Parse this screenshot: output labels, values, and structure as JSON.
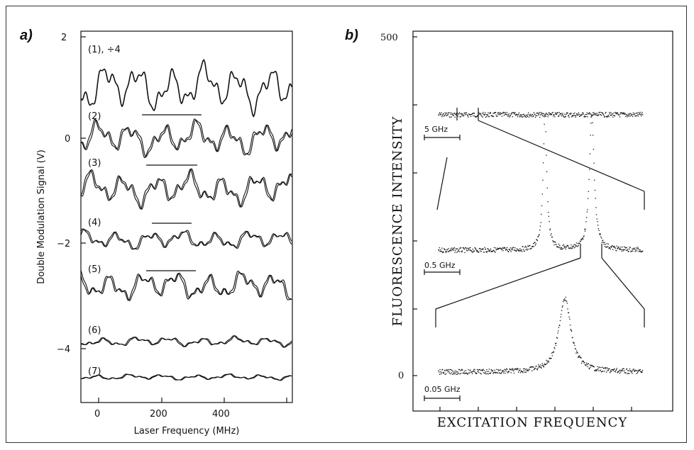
{
  "panel_a": {
    "letter": "a)",
    "ylabel": "Double Modulation Signal (V)",
    "xlabel": "Laser Frequency (MHz)",
    "yticks": [
      "2",
      "0",
      "−2",
      "−4"
    ],
    "xticks": [
      "0",
      "200",
      "400"
    ],
    "trace_labels": [
      "(1), ÷4",
      "(2)",
      "(3)",
      "(4)",
      "(5)",
      "(6)",
      "(7)"
    ]
  },
  "panel_b": {
    "letter": "b)",
    "ylabel": "FLUORESCENCE INTENSITY",
    "xlabel": "EXCITATION FREQUENCY",
    "yticks": [
      "500",
      "0"
    ],
    "scale_labels": [
      "5 GHz",
      "0.5 GHz",
      "0.05 GHz"
    ]
  },
  "chart_data": [
    {
      "type": "line",
      "xlabel": "Laser Frequency (MHz)",
      "ylabel": "Double Modulation Signal (V)",
      "xlim": [
        -50,
        600
      ],
      "ylim": [
        -5.2,
        2.1
      ],
      "series": [
        {
          "name": "(1), ÷4",
          "baseline": 1.0,
          "amplitude": 0.5,
          "style": "single"
        },
        {
          "name": "(2)",
          "baseline": 0.0,
          "amplitude": 0.35,
          "style": "double"
        },
        {
          "name": "(3)",
          "baseline": -1.0,
          "amplitude": 0.35,
          "style": "double"
        },
        {
          "name": "(4)",
          "baseline": -2.0,
          "amplitude": 0.2,
          "style": "double"
        },
        {
          "name": "(5)",
          "baseline": -2.9,
          "amplitude": 0.3,
          "style": "double"
        },
        {
          "name": "(6)",
          "baseline": -4.0,
          "amplitude": 0.1,
          "style": "double"
        },
        {
          "name": "(7)",
          "baseline": -4.7,
          "amplitude": 0.06,
          "style": "double"
        }
      ]
    },
    {
      "type": "scatter",
      "xlabel": "EXCITATION FREQUENCY",
      "ylabel": "FLUORESCENCE INTENSITY",
      "ylim": [
        0,
        500
      ],
      "series": [
        {
          "name": "5 GHz",
          "baseline": 385,
          "peaks": []
        },
        {
          "name": "0.5 GHz",
          "baseline": 185,
          "peaks": [
            200,
            200
          ]
        },
        {
          "name": "0.05 GHz",
          "baseline": 5,
          "peaks": [
            110
          ]
        }
      ]
    }
  ]
}
